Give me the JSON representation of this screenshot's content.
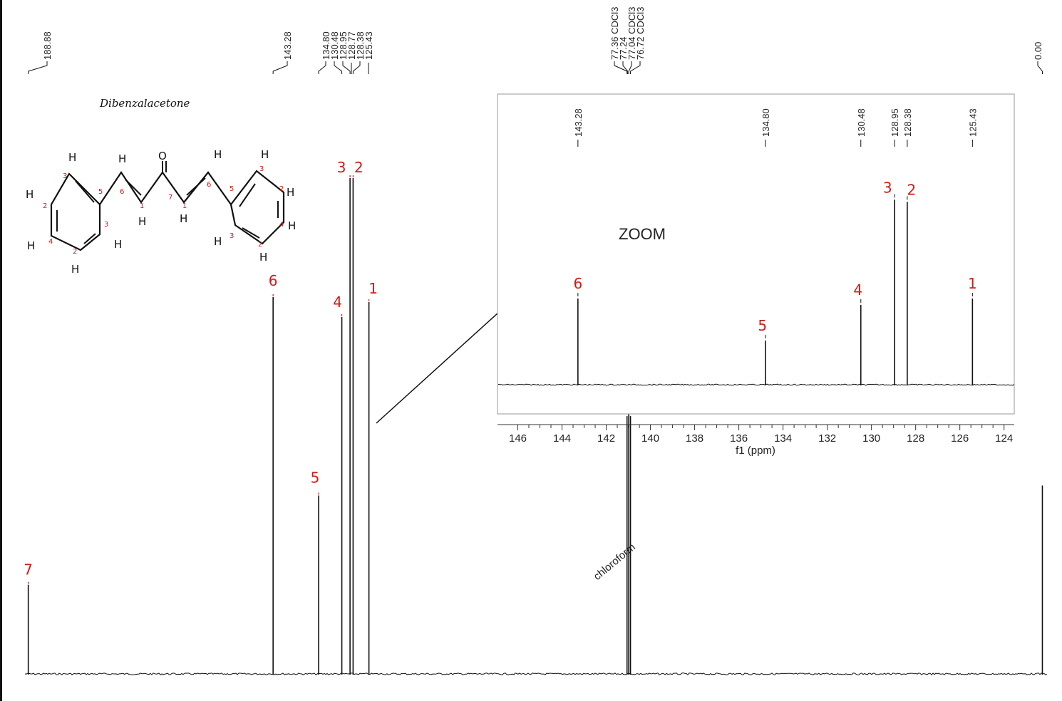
{
  "molecule": {
    "title": "Dibenzalacetone",
    "atom_H": "H",
    "atom_O": "O",
    "ring_numbers_left": [
      "3",
      "5",
      "2",
      "3",
      "4",
      "2"
    ],
    "ring_numbers_right": [
      "3",
      "5",
      "2",
      "4",
      "3",
      "2"
    ],
    "chain_numbers": [
      "6",
      "1",
      "7",
      "1",
      "6"
    ]
  },
  "colors": {
    "spectrum": "#111111",
    "annotation": "#d01a1a",
    "frame": "#9a9a9a"
  },
  "chart_data": [
    {
      "type": "line",
      "name": "main-spectrum",
      "xlim": [
        189.5,
        -1.0
      ],
      "x_reversed": true,
      "peaks": [
        {
          "ppm": 188.88,
          "height": 0.18,
          "label": "188.88",
          "assignment": "7"
        },
        {
          "ppm": 143.28,
          "height": 0.76,
          "label": "143.28",
          "assignment": "6"
        },
        {
          "ppm": 134.8,
          "height": 0.36,
          "label": "134.80",
          "assignment": "5"
        },
        {
          "ppm": 130.48,
          "height": 0.72,
          "label": "130.48",
          "assignment": "4"
        },
        {
          "ppm": 128.95,
          "height": 1.0,
          "label": "128.95",
          "assignment": "3"
        },
        {
          "ppm": 128.77,
          "height": 0.0,
          "label": "128.77",
          "assignment": ""
        },
        {
          "ppm": 128.38,
          "height": 1.0,
          "label": "128.38",
          "assignment": "2"
        },
        {
          "ppm": 125.43,
          "height": 0.75,
          "label": "125.43",
          "assignment": "1"
        },
        {
          "ppm": 77.36,
          "height": 0.52,
          "label": "77.36 CDCl3",
          "assignment": ""
        },
        {
          "ppm": 77.24,
          "height": 0.0,
          "label": "77.24",
          "assignment": ""
        },
        {
          "ppm": 77.04,
          "height": 0.53,
          "label": "77.04 CDCl3",
          "assignment": ""
        },
        {
          "ppm": 76.72,
          "height": 0.52,
          "label": "76.72 CDCl3",
          "assignment": ""
        },
        {
          "ppm": 0.0,
          "height": 0.38,
          "label": "0.00",
          "assignment": ""
        }
      ],
      "annotations": [
        "chloroform"
      ]
    },
    {
      "type": "line",
      "name": "zoom-inset",
      "title": "ZOOM",
      "xlabel": "f1 (ppm)",
      "xlim": [
        146.5,
        123.7
      ],
      "x_reversed": true,
      "ticks": [
        146,
        144,
        142,
        140,
        138,
        136,
        134,
        132,
        130,
        128,
        126,
        124
      ],
      "peaks": [
        {
          "ppm": 143.28,
          "height": 0.41,
          "label": "143.28",
          "assignment": "6"
        },
        {
          "ppm": 134.8,
          "height": 0.21,
          "label": "134.80",
          "assignment": "5"
        },
        {
          "ppm": 130.48,
          "height": 0.38,
          "label": "130.48",
          "assignment": "4"
        },
        {
          "ppm": 128.95,
          "height": 0.88,
          "label": "128.95",
          "assignment": "3"
        },
        {
          "ppm": 128.38,
          "height": 0.87,
          "label": "128.38",
          "assignment": "2"
        },
        {
          "ppm": 125.43,
          "height": 0.41,
          "label": "125.43",
          "assignment": "1"
        }
      ]
    }
  ]
}
